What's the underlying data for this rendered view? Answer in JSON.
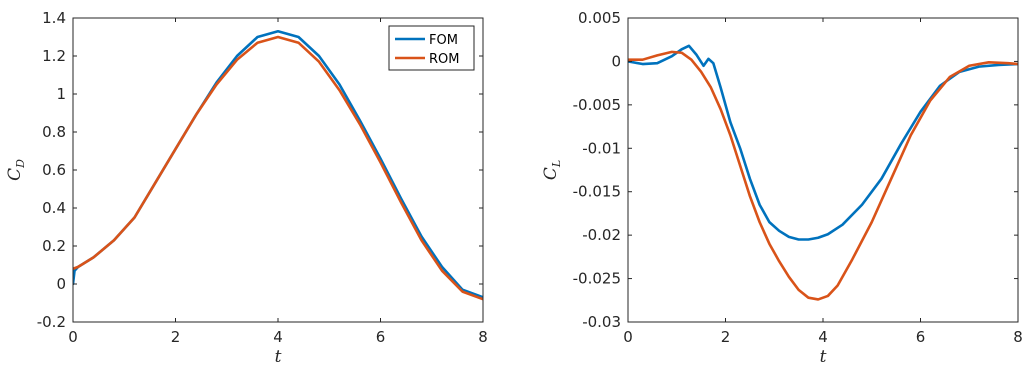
{
  "chart_data": [
    {
      "type": "line",
      "title": "",
      "xlabel": "t",
      "ylabel_main": "C",
      "ylabel_sub": "D",
      "xlim": [
        0,
        8
      ],
      "ylim": [
        -0.2,
        1.4
      ],
      "xticks": [
        0,
        2,
        4,
        6,
        8
      ],
      "xtick_labels": [
        "0",
        "2",
        "4",
        "6",
        "8"
      ],
      "yticks": [
        -0.2,
        0,
        0.2,
        0.4,
        0.6,
        0.8,
        1,
        1.2,
        1.4
      ],
      "ytick_labels": [
        "-0.2",
        "0",
        "0.2",
        "0.4",
        "0.6",
        "0.8",
        "1",
        "1.2",
        "1.4"
      ],
      "grid": false,
      "legend_position": "top-right",
      "series": [
        {
          "name": "FOM",
          "color": "#0072BD",
          "x": [
            0,
            0.03,
            0.1,
            0.4,
            0.8,
            1.2,
            1.6,
            2.0,
            2.4,
            2.8,
            3.2,
            3.6,
            4.0,
            4.4,
            4.8,
            5.2,
            5.6,
            6.0,
            6.4,
            6.8,
            7.2,
            7.6,
            8.0
          ],
          "y": [
            0.0,
            0.07,
            0.09,
            0.14,
            0.23,
            0.35,
            0.53,
            0.71,
            0.89,
            1.06,
            1.2,
            1.3,
            1.33,
            1.3,
            1.2,
            1.05,
            0.86,
            0.66,
            0.45,
            0.25,
            0.09,
            -0.03,
            -0.07
          ]
        },
        {
          "name": "ROM",
          "color": "#D95319",
          "x": [
            0,
            0.1,
            0.4,
            0.8,
            1.2,
            1.6,
            2.0,
            2.4,
            2.8,
            3.2,
            3.6,
            4.0,
            4.4,
            4.8,
            5.2,
            5.6,
            6.0,
            6.4,
            6.8,
            7.2,
            7.6,
            8.0
          ],
          "y": [
            0.08,
            0.09,
            0.14,
            0.23,
            0.35,
            0.53,
            0.71,
            0.89,
            1.05,
            1.18,
            1.27,
            1.3,
            1.27,
            1.17,
            1.02,
            0.84,
            0.64,
            0.43,
            0.23,
            0.07,
            -0.04,
            -0.08
          ]
        }
      ]
    },
    {
      "type": "line",
      "title": "",
      "xlabel": "t",
      "ylabel_main": "C",
      "ylabel_sub": "L",
      "xlim": [
        0,
        8
      ],
      "ylim": [
        -0.03,
        0.005
      ],
      "xticks": [
        0,
        2,
        4,
        6,
        8
      ],
      "xtick_labels": [
        "0",
        "2",
        "4",
        "6",
        "8"
      ],
      "yticks": [
        -0.03,
        -0.025,
        -0.02,
        -0.015,
        -0.01,
        -0.005,
        0,
        0.005
      ],
      "ytick_labels": [
        "-0.03",
        "-0.025",
        "-0.02",
        "-0.015",
        "-0.01",
        "-0.005",
        "0",
        "0.005"
      ],
      "grid": false,
      "series": [
        {
          "name": "FOM",
          "color": "#0072BD",
          "x": [
            0,
            0.3,
            0.6,
            0.9,
            1.1,
            1.25,
            1.4,
            1.55,
            1.65,
            1.75,
            1.9,
            2.1,
            2.3,
            2.5,
            2.7,
            2.9,
            3.1,
            3.3,
            3.5,
            3.7,
            3.9,
            4.1,
            4.4,
            4.8,
            5.2,
            5.6,
            6.0,
            6.4,
            6.8,
            7.2,
            7.6,
            8.0
          ],
          "y": [
            0.0,
            -0.0003,
            -0.0002,
            0.0006,
            0.0014,
            0.0018,
            0.0008,
            -0.0005,
            0.0003,
            -0.0002,
            -0.003,
            -0.007,
            -0.01,
            -0.0135,
            -0.0165,
            -0.0185,
            -0.0195,
            -0.0202,
            -0.0205,
            -0.0205,
            -0.0203,
            -0.0199,
            -0.0188,
            -0.0165,
            -0.0135,
            -0.0095,
            -0.0058,
            -0.0028,
            -0.0012,
            -0.0006,
            -0.0004,
            -0.0003
          ]
        },
        {
          "name": "ROM",
          "color": "#D95319",
          "x": [
            0,
            0.3,
            0.6,
            0.9,
            1.1,
            1.3,
            1.5,
            1.7,
            1.9,
            2.1,
            2.3,
            2.5,
            2.7,
            2.9,
            3.1,
            3.3,
            3.5,
            3.7,
            3.9,
            4.1,
            4.3,
            4.6,
            5.0,
            5.4,
            5.8,
            6.2,
            6.6,
            7.0,
            7.4,
            7.8,
            8.0
          ],
          "y": [
            0.0002,
            0.0002,
            0.0007,
            0.0011,
            0.001,
            0.0002,
            -0.0012,
            -0.003,
            -0.0055,
            -0.0085,
            -0.012,
            -0.0155,
            -0.0185,
            -0.021,
            -0.023,
            -0.0248,
            -0.0263,
            -0.0272,
            -0.0274,
            -0.027,
            -0.0258,
            -0.0228,
            -0.0185,
            -0.0135,
            -0.0085,
            -0.0045,
            -0.0018,
            -0.0005,
            -0.0001,
            -0.0002,
            -0.0003
          ]
        }
      ]
    }
  ]
}
